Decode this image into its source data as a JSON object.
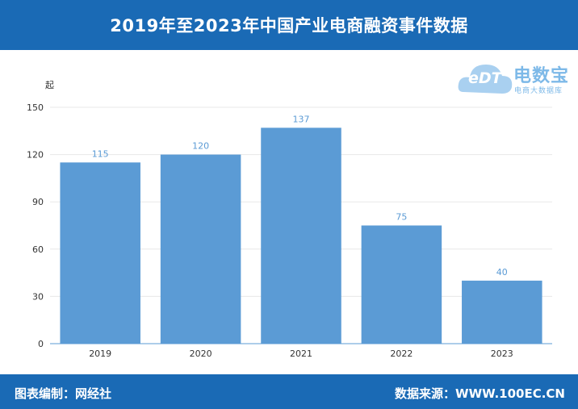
{
  "header": {
    "title": "2019年至2023年中国产业电商融资事件数据"
  },
  "footer": {
    "left": "图表编制：网经社",
    "right": "数据来源：WWW.100EC.CN"
  },
  "logo": {
    "brand": "电数宝",
    "sub": "电商大数据库",
    "mark": "eDT"
  },
  "colors": {
    "header_bg": "#1a6ab5",
    "bar": "#5b9bd5",
    "value_label": "#5b9bd5",
    "grid": "#e8e8e8"
  },
  "chart_data": {
    "type": "bar",
    "title": "2019年至2023年中国产业电商融资事件数据",
    "ylabel": "起",
    "xlabel": "",
    "categories": [
      "2019",
      "2020",
      "2021",
      "2022",
      "2023"
    ],
    "values": [
      115,
      120,
      137,
      75,
      40
    ],
    "ylim": [
      0,
      150
    ],
    "yticks": [
      0,
      30,
      60,
      90,
      120,
      150
    ],
    "grid": true,
    "data_labels": true
  }
}
